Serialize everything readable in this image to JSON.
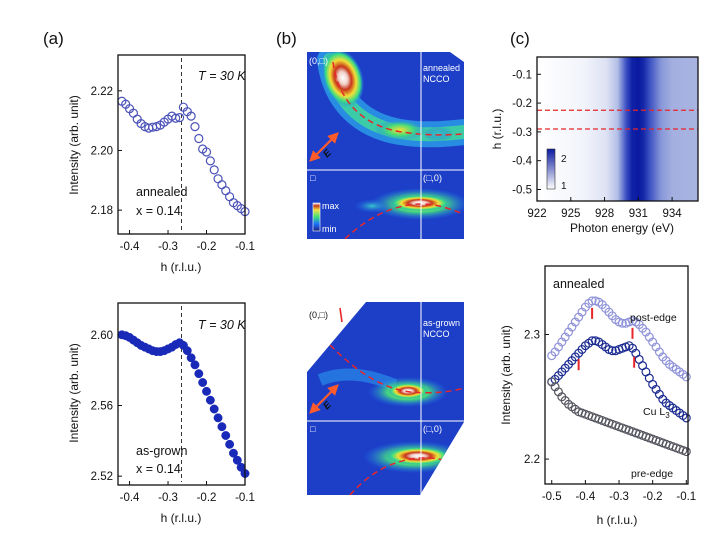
{
  "figure": {
    "panel_labels": [
      "(a)",
      "(b)",
      "(c)"
    ],
    "a_top": {
      "temp_label": "T = 30 K",
      "sample_label": "annealed",
      "doping_label": "x = 0.14",
      "ylabel": "Intensity (arb. unit)",
      "xlabel": "h (r.l.u.)"
    },
    "a_bottom": {
      "temp_label": "T = 30 K",
      "sample_label": "as-grown",
      "doping_label": "x = 0.14",
      "ylabel": "Intensity (arb. unit)",
      "xlabel": "h (r.l.u.)"
    },
    "b_top": {
      "corner_label": "(0,□)",
      "sample_line1": "annealed",
      "sample_line2": "NCCO",
      "origin_label": "□",
      "point_label": "(□,0)",
      "e_label": "E",
      "cbar_max": "max",
      "cbar_min": "min"
    },
    "b_bottom": {
      "corner_label": "(0,□)",
      "sample_line1": "as-grown",
      "sample_line2": "NCCO",
      "origin_label": "□",
      "point_label": "(□,0)",
      "e_label": "E"
    },
    "c_top": {
      "ylabel": "h (r.l.u.)",
      "xlabel": "Photon energy (eV)",
      "cbar_ticks": [
        "2",
        "1"
      ]
    },
    "c_bottom": {
      "sample_label": "annealed",
      "post_label": "post-edge",
      "cu_label": "Cu L",
      "cu_sub": "3",
      "pre_label": "pre-edge",
      "ylabel": "Intensity (arb. unit)",
      "xlabel": "h (r.l.u.)"
    }
  },
  "chart_data": [
    {
      "id": "a_top",
      "type": "scatter",
      "title": "",
      "xlabel": "h (r.l.u.)",
      "ylabel": "Intensity (arb. unit)",
      "xlim": [
        -0.43,
        -0.1
      ],
      "ylim": [
        2.172,
        2.232
      ],
      "xticks": [
        -0.4,
        -0.3,
        -0.2,
        -0.1
      ],
      "xtick_labels": [
        "-0.4",
        "-0.3",
        "-0.2",
        "-0.1"
      ],
      "yticks": [
        2.18,
        2.2,
        2.22
      ],
      "ytick_labels": [
        "2.18",
        "2.20",
        "2.22"
      ],
      "vline": -0.265,
      "series": [
        {
          "name": "annealed x = 0.14",
          "marker": "open",
          "color": "#4b52b8",
          "x": [
            -0.42,
            -0.41,
            -0.4,
            -0.39,
            -0.38,
            -0.37,
            -0.36,
            -0.35,
            -0.34,
            -0.33,
            -0.32,
            -0.31,
            -0.3,
            -0.29,
            -0.28,
            -0.27,
            -0.26,
            -0.25,
            -0.24,
            -0.23,
            -0.22,
            -0.21,
            -0.2,
            -0.19,
            -0.18,
            -0.17,
            -0.16,
            -0.15,
            -0.14,
            -0.13,
            -0.12,
            -0.11,
            -0.1
          ],
          "y": [
            2.2165,
            2.2155,
            2.214,
            2.2125,
            2.2105,
            2.209,
            2.208,
            2.2075,
            2.2078,
            2.208,
            2.2085,
            2.2095,
            2.2105,
            2.2115,
            2.2108,
            2.211,
            2.2145,
            2.213,
            2.2115,
            2.208,
            2.204,
            2.2005,
            2.1995,
            2.1965,
            2.1935,
            2.1905,
            2.1885,
            2.1865,
            2.1845,
            2.1825,
            2.1815,
            2.1805,
            2.1795
          ]
        }
      ]
    },
    {
      "id": "a_bottom",
      "type": "scatter",
      "title": "",
      "xlabel": "h (r.l.u.)",
      "ylabel": "Intensity (arb. unit)",
      "xlim": [
        -0.43,
        -0.1
      ],
      "ylim": [
        2.515,
        2.618
      ],
      "xticks": [
        -0.4,
        -0.3,
        -0.2,
        -0.1
      ],
      "xtick_labels": [
        "-0.4",
        "-0.3",
        "-0.2",
        "-0.1"
      ],
      "yticks": [
        2.52,
        2.56,
        2.6
      ],
      "ytick_labels": [
        "2.52",
        "2.56",
        "2.60"
      ],
      "vline": -0.265,
      "series": [
        {
          "name": "as-grown x = 0.14",
          "marker": "filled",
          "color": "#1a2ab8",
          "x": [
            -0.42,
            -0.41,
            -0.4,
            -0.39,
            -0.38,
            -0.37,
            -0.36,
            -0.35,
            -0.34,
            -0.33,
            -0.32,
            -0.31,
            -0.3,
            -0.29,
            -0.28,
            -0.27,
            -0.26,
            -0.25,
            -0.24,
            -0.23,
            -0.22,
            -0.21,
            -0.2,
            -0.19,
            -0.18,
            -0.17,
            -0.16,
            -0.15,
            -0.14,
            -0.13,
            -0.12,
            -0.11,
            -0.1
          ],
          "y": [
            2.6,
            2.5995,
            2.5985,
            2.597,
            2.5955,
            2.594,
            2.593,
            2.592,
            2.591,
            2.5905,
            2.5905,
            2.591,
            2.592,
            2.593,
            2.5945,
            2.5955,
            2.594,
            2.591,
            2.587,
            2.583,
            2.578,
            2.573,
            2.568,
            2.563,
            2.558,
            2.553,
            2.548,
            2.543,
            2.538,
            2.533,
            2.529,
            2.525,
            2.5215
          ]
        }
      ]
    },
    {
      "id": "c_top",
      "type": "heatmap",
      "title": "",
      "xlabel": "Photon energy (eV)",
      "ylabel": "h (r.l.u.)",
      "xlim": [
        922,
        936.3
      ],
      "ylim": [
        -0.54,
        -0.04
      ],
      "xticks": [
        922,
        925,
        928,
        931,
        934
      ],
      "xtick_labels": [
        "922",
        "925",
        "928",
        "931",
        "934"
      ],
      "yticks": [
        -0.5,
        -0.4,
        -0.3,
        -0.2,
        -0.1
      ],
      "ytick_labels": [
        "-0.5",
        "-0.4",
        "-0.3",
        "-0.2",
        "-0.1"
      ],
      "hlines": [
        -0.225,
        -0.29
      ],
      "intensity_profile": {
        "energy": [
          922,
          926,
          928,
          929,
          930,
          930.5,
          931,
          931.5,
          932,
          933,
          934,
          936.3
        ],
        "intensity": [
          1.0,
          1.05,
          1.15,
          1.3,
          1.7,
          1.95,
          2.0,
          1.95,
          1.75,
          1.35,
          1.25,
          1.2
        ]
      },
      "colorbar": {
        "ticks": [
          1,
          2
        ],
        "tick_labels": [
          "1",
          "2"
        ]
      }
    },
    {
      "id": "c_bottom",
      "type": "scatter",
      "title": "",
      "xlabel": "h (r.l.u.)",
      "ylabel": "Intensity (arb. unit)",
      "xlim": [
        -0.52,
        -0.095
      ],
      "ylim": [
        2.18,
        2.355
      ],
      "xticks": [
        -0.5,
        -0.4,
        -0.3,
        -0.2,
        -0.1
      ],
      "xtick_labels": [
        "-0.5",
        "-0.4",
        "-0.3",
        "-0.2",
        "-0.1"
      ],
      "yticks": [
        2.2,
        2.3
      ],
      "ytick_labels": [
        "2.2",
        "2.3"
      ],
      "series": [
        {
          "name": "post-edge",
          "marker": "open",
          "color": "#8f93d8",
          "x": [
            -0.5,
            -0.49,
            -0.48,
            -0.47,
            -0.46,
            -0.45,
            -0.44,
            -0.43,
            -0.42,
            -0.41,
            -0.4,
            -0.39,
            -0.38,
            -0.37,
            -0.36,
            -0.35,
            -0.34,
            -0.33,
            -0.32,
            -0.31,
            -0.3,
            -0.29,
            -0.28,
            -0.27,
            -0.26,
            -0.25,
            -0.24,
            -0.23,
            -0.22,
            -0.21,
            -0.2,
            -0.19,
            -0.18,
            -0.17,
            -0.16,
            -0.15,
            -0.14,
            -0.13,
            -0.12,
            -0.11,
            -0.1
          ],
          "y": [
            2.283,
            2.286,
            2.29,
            2.294,
            2.298,
            2.302,
            2.306,
            2.31,
            2.314,
            2.318,
            2.322,
            2.325,
            2.327,
            2.327,
            2.326,
            2.324,
            2.321,
            2.318,
            2.315,
            2.312,
            2.31,
            2.309,
            2.309,
            2.31,
            2.311,
            2.31,
            2.308,
            2.305,
            2.302,
            2.298,
            2.294,
            2.29,
            2.286,
            2.282,
            2.279,
            2.276,
            2.274,
            2.272,
            2.27,
            2.268,
            2.266
          ]
        },
        {
          "name": "Cu L3",
          "marker": "open",
          "color": "#1a2a90",
          "x": [
            -0.5,
            -0.49,
            -0.48,
            -0.47,
            -0.46,
            -0.45,
            -0.44,
            -0.43,
            -0.42,
            -0.41,
            -0.4,
            -0.39,
            -0.38,
            -0.37,
            -0.36,
            -0.35,
            -0.34,
            -0.33,
            -0.32,
            -0.31,
            -0.3,
            -0.29,
            -0.28,
            -0.27,
            -0.26,
            -0.25,
            -0.24,
            -0.23,
            -0.22,
            -0.21,
            -0.2,
            -0.19,
            -0.18,
            -0.17,
            -0.16,
            -0.15,
            -0.14,
            -0.13,
            -0.12,
            -0.11,
            -0.1
          ],
          "y": [
            2.262,
            2.264,
            2.267,
            2.27,
            2.273,
            2.276,
            2.279,
            2.282,
            2.285,
            2.288,
            2.291,
            2.293,
            2.295,
            2.295,
            2.294,
            2.292,
            2.29,
            2.288,
            2.287,
            2.287,
            2.288,
            2.289,
            2.29,
            2.291,
            2.289,
            2.285,
            2.28,
            2.275,
            2.27,
            2.265,
            2.26,
            2.256,
            2.252,
            2.248,
            2.245,
            2.243,
            2.241,
            2.239,
            2.237,
            2.235,
            2.233
          ]
        },
        {
          "name": "pre-edge",
          "marker": "open",
          "color": "#55555f",
          "x": [
            -0.5,
            -0.49,
            -0.48,
            -0.47,
            -0.46,
            -0.45,
            -0.44,
            -0.43,
            -0.42,
            -0.41,
            -0.4,
            -0.39,
            -0.38,
            -0.37,
            -0.36,
            -0.35,
            -0.34,
            -0.33,
            -0.32,
            -0.31,
            -0.3,
            -0.29,
            -0.28,
            -0.27,
            -0.26,
            -0.25,
            -0.24,
            -0.23,
            -0.22,
            -0.21,
            -0.2,
            -0.19,
            -0.18,
            -0.17,
            -0.16,
            -0.15,
            -0.14,
            -0.13,
            -0.12,
            -0.11,
            -0.1
          ],
          "y": [
            2.262,
            2.258,
            2.254,
            2.25,
            2.247,
            2.244,
            2.242,
            2.24,
            2.238,
            2.237,
            2.236,
            2.235,
            2.234,
            2.233,
            2.232,
            2.231,
            2.23,
            2.229,
            2.228,
            2.227,
            2.226,
            2.225,
            2.224,
            2.223,
            2.222,
            2.221,
            2.22,
            2.219,
            2.218,
            2.217,
            2.216,
            2.215,
            2.214,
            2.213,
            2.212,
            2.211,
            2.21,
            2.209,
            2.208,
            2.207,
            2.206
          ]
        }
      ],
      "marks": {
        "post_edge": [
          -0.38,
          -0.26
        ],
        "cu_l3": [
          -0.42,
          -0.255
        ]
      }
    }
  ]
}
